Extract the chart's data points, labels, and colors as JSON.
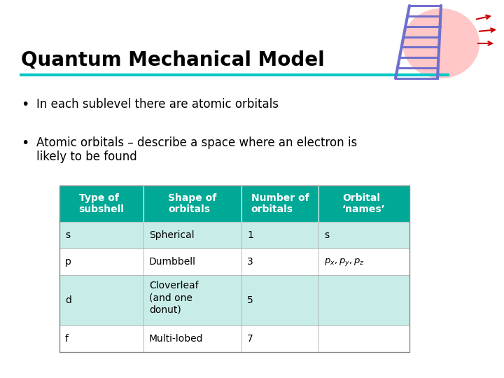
{
  "title": "Quantum Mechanical Model",
  "title_fontsize": 20,
  "title_color": "#000000",
  "underline_color": "#00C8C8",
  "bg_color": "#FFFFFF",
  "bullet1": "In each sublevel there are atomic orbitals",
  "bullet2_line1": "Atomic orbitals – describe a space where an electron is",
  "bullet2_line2": "likely to be found",
  "bullet_fontsize": 12,
  "table_header_bg": "#00A896",
  "table_row_bg_alt": "#C8EDE8",
  "table_row_bg_white": "#FFFFFF",
  "table_header_text_color": "#FFFFFF",
  "table_text_color": "#000000",
  "table_headers": [
    "Type of\nsubshell",
    "Shape of\norbitals",
    "Number of\norbitals",
    "Orbital\n‘names’"
  ],
  "table_rows": [
    [
      "s",
      "Spherical",
      "1",
      "s"
    ],
    [
      "p",
      "Dumbbell",
      "3",
      ""
    ],
    [
      "d",
      "Cloverleaf\n(and one\ndonut)",
      "5",
      ""
    ],
    [
      "f",
      "Multi-lobed",
      "7",
      ""
    ]
  ],
  "header_fontsize": 10,
  "cell_fontsize": 10,
  "ladder_color": "#7070CC",
  "ellipse_color": "#FFB0B0",
  "arrow_color": "#CC0000"
}
